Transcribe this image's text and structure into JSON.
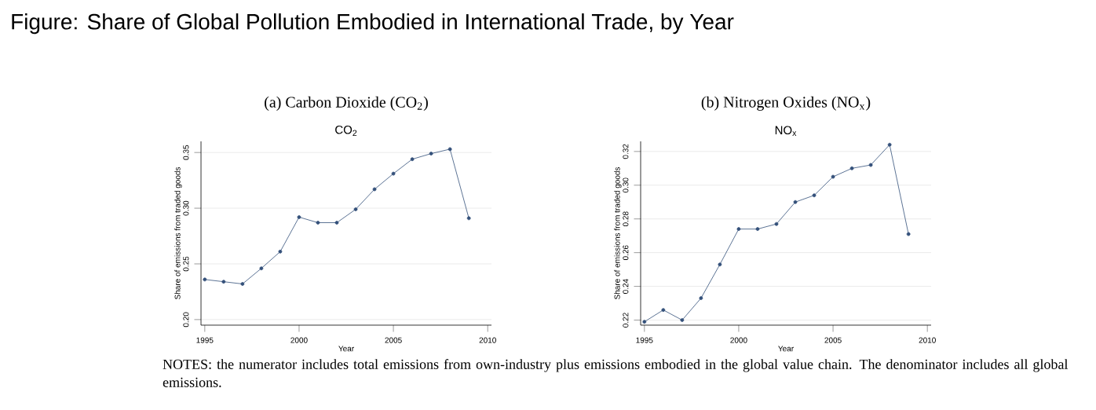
{
  "chart_data": [
    {
      "type": "other",
      "title": "Figure: Share of Global Pollution Embodied in International Trade, by Year",
      "annotations": [
        "NOTES: the numerator includes total emissions from own-industry plus emissions embodied in the global value chain. The denominator includes all global emissions."
      ]
    },
    {
      "type": "line",
      "title": "(a) Carbon Dioxide (CO$_{2}$)",
      "subtitle": "CO$_{2}$",
      "xlabel": "Year",
      "ylabel": "Share of emissions from traded goods",
      "x": [
        1995,
        1996,
        1997,
        1998,
        1999,
        2000,
        2001,
        2002,
        2003,
        2004,
        2005,
        2006,
        2007,
        2008,
        2009
      ],
      "series": [
        {
          "color": "#34507a",
          "values": [
            0.236,
            0.234,
            0.232,
            0.246,
            0.261,
            0.292,
            0.287,
            0.287,
            0.299,
            0.317,
            0.331,
            0.344,
            0.349,
            0.353,
            0.291
          ]
        }
      ],
      "xlim": [
        1994.8,
        2010.2
      ],
      "xticks": [
        1995,
        2000,
        2005,
        2010
      ],
      "ylim": [
        0.195,
        0.36
      ],
      "yticks": [
        {
          "value": 0.2,
          "label": "0.20"
        },
        {
          "value": 0.25,
          "label": "0.25"
        },
        {
          "value": 0.3,
          "label": "0.30"
        },
        {
          "value": 0.35,
          "label": "0.35"
        }
      ],
      "grid": "y",
      "marker": "circle",
      "line_style": "solid"
    },
    {
      "type": "line",
      "title": "(b) Nitrogen Oxides (NO$_{x}$)",
      "subtitle": "NO$_{x}$",
      "xlabel": "Year",
      "ylabel": "Share of emissions from traded goods",
      "x": [
        1995,
        1996,
        1997,
        1998,
        1999,
        2000,
        2001,
        2002,
        2003,
        2004,
        2005,
        2006,
        2007,
        2008,
        2009
      ],
      "series": [
        {
          "color": "#34507a",
          "values": [
            0.219,
            0.226,
            0.22,
            0.233,
            0.253,
            0.274,
            0.274,
            0.277,
            0.29,
            0.294,
            0.305,
            0.31,
            0.312,
            0.324,
            0.271
          ]
        }
      ],
      "xlim": [
        1994.8,
        2010.2
      ],
      "xticks": [
        1995,
        2000,
        2005,
        2010
      ],
      "ylim": [
        0.217,
        0.326
      ],
      "yticks": [
        {
          "value": 0.22,
          "label": "0.22"
        },
        {
          "value": 0.24,
          "label": "0.24"
        },
        {
          "value": 0.26,
          "label": "0.26"
        },
        {
          "value": 0.28,
          "label": "0.28"
        },
        {
          "value": 0.3,
          "label": "0.30"
        },
        {
          "value": 0.32,
          "label": "0.32"
        }
      ],
      "grid": "y",
      "marker": "circle",
      "line_style": "solid"
    }
  ]
}
